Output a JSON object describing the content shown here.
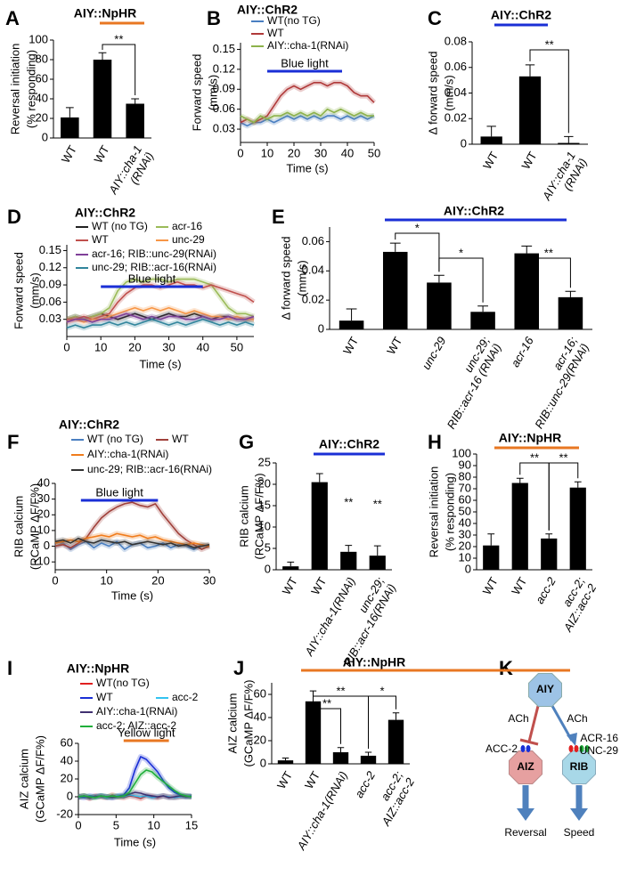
{
  "chart_data": [
    {
      "type": "bar",
      "panel": "A",
      "title": "AIY::NpHR",
      "title_color": "#e87722",
      "ylabel": [
        "Reversal initiation",
        "(% responding)"
      ],
      "categories": [
        "WT",
        "WT",
        [
          "AIY::cha-1",
          "(RNAi)"
        ]
      ],
      "values": [
        21,
        80,
        35
      ],
      "errors": [
        10,
        7,
        5
      ],
      "color": "#000000",
      "ylim": [
        0,
        100
      ],
      "yticks": [
        0,
        20,
        40,
        60,
        80,
        100
      ],
      "annotations": [
        "**"
      ]
    },
    {
      "type": "line",
      "panel": "B",
      "title": "AIY::ChR2",
      "title_color": "#1a2fd6",
      "ylabel": [
        "Forward speed",
        "(mm/s)"
      ],
      "xlabel": "Time (s)",
      "x": [
        0,
        2.5,
        5,
        7.5,
        10,
        12.5,
        15,
        17.5,
        20,
        22.5,
        25,
        27.5,
        30,
        32.5,
        35,
        37.5,
        40,
        42.5,
        45,
        47.5,
        50
      ],
      "series": [
        {
          "name": "WT(no TG)",
          "color": "#4a7fc1",
          "values": [
            0.04,
            0.035,
            0.04,
            0.04,
            0.045,
            0.04,
            0.045,
            0.05,
            0.045,
            0.05,
            0.045,
            0.05,
            0.045,
            0.05,
            0.05,
            0.045,
            0.05,
            0.045,
            0.05,
            0.045,
            0.05
          ]
        },
        {
          "name": "WT",
          "color": "#b03a3a",
          "values": [
            0.04,
            0.045,
            0.04,
            0.045,
            0.05,
            0.065,
            0.08,
            0.09,
            0.095,
            0.09,
            0.095,
            0.1,
            0.1,
            0.095,
            0.1,
            0.1,
            0.095,
            0.085,
            0.08,
            0.08,
            0.07
          ]
        },
        {
          "name": "AIY::cha-1(RNAi)",
          "color": "#8db24b",
          "values": [
            0.05,
            0.045,
            0.04,
            0.05,
            0.045,
            0.05,
            0.05,
            0.055,
            0.05,
            0.055,
            0.05,
            0.055,
            0.05,
            0.06,
            0.055,
            0.06,
            0.055,
            0.05,
            0.055,
            0.05,
            0.05
          ]
        }
      ],
      "xlim": [
        0,
        50
      ],
      "xticks": [
        0,
        10,
        20,
        30,
        40,
        50
      ],
      "ylim": [
        0.01,
        0.16
      ],
      "yticks": [
        0.03,
        0.06,
        0.09,
        0.12,
        0.15
      ],
      "light": {
        "label": "Blue light",
        "start": 10,
        "end": 38,
        "color": "#1a2fd6"
      }
    },
    {
      "type": "bar",
      "panel": "C",
      "title": "AIY::ChR2",
      "title_color": "#1a2fd6",
      "ylabel": [
        "Δ forward speed",
        "(mm/s)"
      ],
      "categories": [
        "WT",
        "WT",
        [
          "AIY::cha-1",
          "(RNAi)"
        ]
      ],
      "values": [
        0.006,
        0.053,
        0.001
      ],
      "errors": [
        0.008,
        0.009,
        0.005
      ],
      "color": "#000000",
      "ylim": [
        0,
        0.08
      ],
      "yticks": [
        0,
        0.02,
        0.04,
        0.06,
        0.08
      ],
      "annotations": [
        "**"
      ]
    },
    {
      "type": "line",
      "panel": "D",
      "title": "AIY::ChR2",
      "title_color": "#1a2fd6",
      "ylabel": [
        "Forward speed",
        "(mm/s)"
      ],
      "xlabel": "Time (s)",
      "x": [
        0,
        2.5,
        5,
        7.5,
        10,
        12.5,
        15,
        17.5,
        20,
        22.5,
        25,
        27.5,
        30,
        32.5,
        35,
        37.5,
        40,
        42.5,
        45,
        47.5,
        50,
        52.5,
        55
      ],
      "series": [
        {
          "name": "WT (no TG)",
          "color": "#222222",
          "values": [
            0.03,
            0.035,
            0.03,
            0.035,
            0.04,
            0.035,
            0.03,
            0.035,
            0.04,
            0.035,
            0.03,
            0.035,
            0.04,
            0.035,
            0.035,
            0.04,
            0.035,
            0.03,
            0.035,
            0.035,
            0.03,
            0.03,
            0.03
          ]
        },
        {
          "name": "acr-16",
          "color": "#9bbb59",
          "values": [
            0.03,
            0.035,
            0.03,
            0.035,
            0.04,
            0.05,
            0.08,
            0.095,
            0.1,
            0.095,
            0.1,
            0.1,
            0.095,
            0.1,
            0.1,
            0.1,
            0.095,
            0.09,
            0.07,
            0.05,
            0.04,
            0.04,
            0.035
          ]
        },
        {
          "name": "WT",
          "color": "#c0504d",
          "values": [
            0.03,
            0.03,
            0.035,
            0.03,
            0.035,
            0.04,
            0.06,
            0.075,
            0.085,
            0.09,
            0.09,
            0.085,
            0.09,
            0.095,
            0.09,
            0.09,
            0.085,
            0.09,
            0.085,
            0.08,
            0.075,
            0.07,
            0.06
          ]
        },
        {
          "name": "unc-29",
          "color": "#f79646",
          "values": [
            0.025,
            0.03,
            0.025,
            0.03,
            0.03,
            0.035,
            0.04,
            0.045,
            0.05,
            0.045,
            0.05,
            0.045,
            0.05,
            0.045,
            0.04,
            0.045,
            0.04,
            0.035,
            0.035,
            0.03,
            0.035,
            0.03,
            0.03
          ]
        },
        {
          "name": "acr-16; RIB::unc-29(RNAi)",
          "color": "#7f3f98",
          "values": [
            0.025,
            0.03,
            0.03,
            0.025,
            0.03,
            0.03,
            0.035,
            0.04,
            0.035,
            0.03,
            0.035,
            0.03,
            0.035,
            0.035,
            0.03,
            0.03,
            0.035,
            0.03,
            0.03,
            0.035,
            0.03,
            0.03,
            0.035
          ]
        },
        {
          "name": "unc-29; RIB::acr-16(RNAi)",
          "color": "#31859c",
          "values": [
            0.015,
            0.02,
            0.015,
            0.02,
            0.02,
            0.025,
            0.02,
            0.025,
            0.02,
            0.025,
            0.03,
            0.025,
            0.02,
            0.025,
            0.02,
            0.025,
            0.03,
            0.025,
            0.02,
            0.025,
            0.02,
            0.025,
            0.02
          ]
        }
      ],
      "xlim": [
        0,
        55
      ],
      "xticks": [
        0,
        10,
        20,
        30,
        40,
        50
      ],
      "ylim": [
        0,
        0.16
      ],
      "yticks": [
        0.03,
        0.06,
        0.09,
        0.12,
        0.15
      ],
      "light": {
        "label": "Blue light",
        "start": 10,
        "end": 40,
        "color": "#1a2fd6"
      }
    },
    {
      "type": "bar",
      "panel": "E",
      "title": "AIY::ChR2",
      "title_color": "#1a2fd6",
      "ylabel": [
        "Δ forward speed",
        "(mm/s)"
      ],
      "categories": [
        "WT",
        "WT",
        "unc-29",
        [
          "unc-29;",
          "RIB::acr-16 (RNAi)"
        ],
        "acr-16",
        [
          "acr-16;",
          "RIB::unc-29(RNAi)"
        ]
      ],
      "values": [
        0.006,
        0.053,
        0.032,
        0.012,
        0.052,
        0.022
      ],
      "errors": [
        0.008,
        0.006,
        0.005,
        0.004,
        0.005,
        0.004
      ],
      "color": "#000000",
      "ylim": [
        0,
        0.07
      ],
      "yticks": [
        0,
        0.02,
        0.04,
        0.06
      ],
      "annotations": [
        "*",
        "*",
        "**"
      ]
    },
    {
      "type": "line",
      "panel": "F",
      "title": "AIY::ChR2",
      "title_color": "#1a2fd6",
      "ylabel": [
        "RIB calcium",
        "(RCaMP ΔF/F%)"
      ],
      "xlabel": "Time (s)",
      "x": [
        0,
        1.5,
        3,
        4.5,
        6,
        7.5,
        9,
        10.5,
        12,
        13.5,
        15,
        16.5,
        18,
        19.5,
        21,
        22.5,
        24,
        25.5,
        27,
        28.5,
        30
      ],
      "series": [
        {
          "name": "WT (no TG)",
          "color": "#4a7fc1",
          "values": [
            0,
            2,
            -2,
            1,
            3,
            -1,
            2,
            0,
            3,
            -2,
            1,
            2,
            -1,
            0,
            2,
            -1,
            1,
            0,
            -2,
            1,
            0
          ]
        },
        {
          "name": "WT",
          "color": "#a0403a",
          "values": [
            0,
            1,
            -1,
            2,
            5,
            12,
            18,
            22,
            25,
            27,
            28,
            26,
            25,
            27,
            20,
            14,
            8,
            4,
            1,
            -2,
            0
          ]
        },
        {
          "name": "AIY::cha-1(RNAi)",
          "color": "#f07c1c",
          "values": [
            2,
            3,
            4,
            3,
            5,
            6,
            7,
            6,
            8,
            7,
            6,
            7,
            5,
            6,
            4,
            3,
            2,
            1,
            2,
            1,
            0
          ]
        },
        {
          "name": "unc-29; RIB::acr-16(RNAi)",
          "color": "#333333",
          "values": [
            3,
            4,
            2,
            5,
            3,
            2,
            4,
            3,
            2,
            3,
            1,
            2,
            3,
            2,
            1,
            2,
            0,
            1,
            -1,
            0,
            1
          ]
        }
      ],
      "xlim": [
        0,
        30
      ],
      "xticks": [
        0,
        10,
        20,
        30
      ],
      "ylim": [
        -15,
        40
      ],
      "yticks": [
        -10,
        0,
        10,
        20,
        30,
        40
      ],
      "light": {
        "label": "Blue light",
        "start": 5,
        "end": 20,
        "color": "#1a2fd6"
      }
    },
    {
      "type": "bar",
      "panel": "G",
      "title": "AIY::ChR2",
      "title_color": "#1a2fd6",
      "ylabel": [
        "RIB calcium",
        "(RCaMP ΔF/F%)"
      ],
      "categories": [
        "WT",
        "WT",
        "AIY::cha-1(RNAi)",
        [
          "unc-29;",
          "RIB::acr-16(RNAi)"
        ]
      ],
      "values": [
        0.8,
        20.5,
        4.2,
        3.3
      ],
      "errors": [
        1,
        2,
        1.5,
        2.3
      ],
      "color": "#000000",
      "ylim": [
        0,
        25
      ],
      "yticks": [
        0,
        5,
        10,
        15,
        20,
        25
      ],
      "annotations": [
        "**",
        "**"
      ]
    },
    {
      "type": "bar",
      "panel": "H",
      "title": "AIY::NpHR",
      "title_color": "#e87722",
      "ylabel": [
        "Reversal initiation",
        "(% responding)"
      ],
      "categories": [
        "WT",
        "WT",
        "acc-2",
        [
          "acc-2;",
          "AIZ::acc-2"
        ]
      ],
      "values": [
        21,
        75,
        27,
        71
      ],
      "errors": [
        10,
        4,
        4,
        5
      ],
      "color": "#000000",
      "ylim": [
        0,
        100
      ],
      "yticks": [
        0,
        10,
        20,
        30,
        40,
        50,
        60,
        70,
        80,
        90,
        100
      ],
      "annotations": [
        "**",
        "**"
      ]
    },
    {
      "type": "line",
      "panel": "I",
      "title": "AIY::NpHR",
      "title_color": "#e87722",
      "ylabel": [
        "AIZ calcium",
        "(GCaMP ΔF/F%)"
      ],
      "xlabel": "Time (s)",
      "x": [
        0,
        0.75,
        1.5,
        2.25,
        3,
        3.75,
        4.5,
        5.25,
        6,
        6.75,
        7.5,
        8.25,
        9,
        9.75,
        10.5,
        11.25,
        12,
        12.75,
        13.5,
        14.25,
        15
      ],
      "series": [
        {
          "name": "WT(no TG)",
          "color": "#e02020",
          "values": [
            0,
            1,
            -2,
            1,
            0,
            -1,
            2,
            0,
            -1,
            1,
            0,
            -2,
            1,
            0,
            -1,
            1,
            0,
            -1,
            0,
            1,
            0
          ]
        },
        {
          "name": "WT",
          "color": "#1a2fd6",
          "values": [
            0,
            -1,
            1,
            0,
            1,
            0,
            -1,
            1,
            2,
            10,
            30,
            45,
            42,
            35,
            28,
            18,
            10,
            5,
            2,
            0,
            1
          ]
        },
        {
          "name": "acc-2",
          "color": "#33c3f0",
          "values": [
            0,
            1,
            -1,
            0,
            1,
            -1,
            0,
            1,
            0,
            2,
            1,
            0,
            1,
            -1,
            0,
            1,
            0,
            -1,
            0,
            1,
            0
          ]
        },
        {
          "name": "AIY::cha-1(RNAi)",
          "color": "#403070",
          "values": [
            0,
            1,
            -1,
            0,
            1,
            0,
            -1,
            0,
            1,
            3,
            5,
            4,
            2,
            1,
            0,
            1,
            -1,
            0,
            1,
            0,
            0
          ]
        },
        {
          "name": "acc-2; AIZ::acc-2",
          "color": "#1fae3a",
          "values": [
            0,
            1,
            0,
            -1,
            1,
            0,
            1,
            0,
            1,
            5,
            15,
            25,
            30,
            28,
            22,
            17,
            12,
            7,
            3,
            1,
            0
          ]
        }
      ],
      "xlim": [
        0,
        15
      ],
      "xticks": [
        0,
        5,
        10,
        15
      ],
      "ylim": [
        -20,
        60
      ],
      "yticks": [
        -20,
        0,
        20,
        40,
        60
      ],
      "light": {
        "label": "Yellow light",
        "start": 6,
        "end": 12,
        "color": "#e87722"
      }
    },
    {
      "type": "bar",
      "panel": "J",
      "title": "AIY::NpHR",
      "title_color": "#e87722",
      "ylabel": [
        "AIZ calcium",
        "(GCaMP ΔF/F%)"
      ],
      "categories": [
        "WT",
        "WT",
        "AIY::cha-1(RNAi)",
        "acc-2",
        [
          "acc-2;",
          "AIZ::acc-2"
        ]
      ],
      "values": [
        3,
        54,
        10,
        7,
        38
      ],
      "errors": [
        2,
        9,
        4,
        3,
        6
      ],
      "color": "#000000",
      "ylim": [
        0,
        70
      ],
      "yticks": [
        0,
        20,
        40,
        60
      ],
      "annotations": [
        "**",
        "**",
        "*"
      ]
    }
  ],
  "diagram": {
    "panel": "K",
    "nodes": [
      "AIY",
      "AIZ",
      "RIB"
    ],
    "transmitters": [
      "ACh",
      "ACh"
    ],
    "receptors": [
      "ACC-2",
      "ACR-16",
      "UNC-29"
    ],
    "outputs": [
      "Reversal",
      "Speed"
    ]
  }
}
